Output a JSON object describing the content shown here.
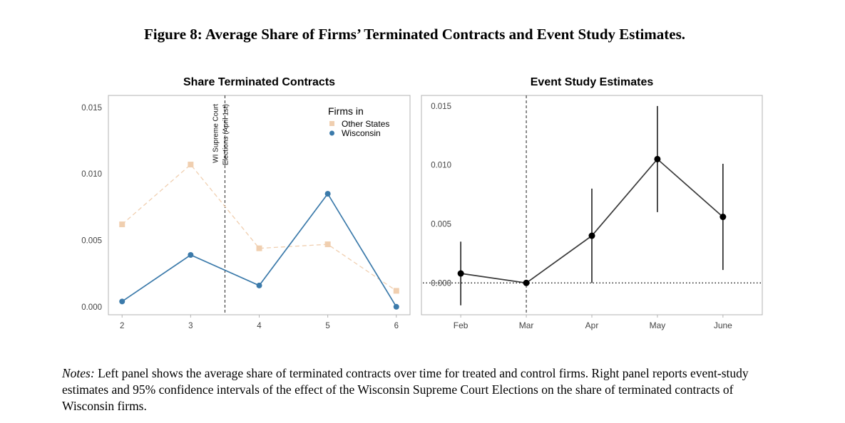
{
  "figure": {
    "title": "Figure 8: Average Share of Firms’ Terminated Contracts and Event Study Estimates."
  },
  "notes": {
    "label": "Notes:",
    "text": "Left panel shows the average share of terminated contracts over time for treated and control firms. Right panel reports event-study estimates and 95% confidence intervals of the effect of the Wisconsin Supreme Court Elections on the share of terminated contracts of Wisconsin firms."
  },
  "chart_data": [
    {
      "type": "line",
      "title": "Share Terminated Contracts",
      "xlabel": "",
      "ylabel": "",
      "x": [
        2,
        3,
        4,
        5,
        6
      ],
      "x_tick_labels": [
        "2",
        "3",
        "4",
        "5",
        "6"
      ],
      "y_ticks": [
        "0.000",
        "0.005",
        "0.010",
        "0.015"
      ],
      "ylim": [
        -0.0006,
        0.0159
      ],
      "xlim": [
        1.8,
        6.2
      ],
      "grid": false,
      "legend": {
        "title": "Firms in",
        "placement": "top-right"
      },
      "series": [
        {
          "name": "Other States",
          "values": [
            0.0062,
            0.0107,
            0.0044,
            0.0047,
            0.0012
          ],
          "color": "#f0cfb0",
          "style": "dashed",
          "marker": "square"
        },
        {
          "name": "Wisconsin",
          "values": [
            0.0004,
            0.0039,
            0.0016,
            0.0085,
            0.0
          ],
          "color": "#3b7aaa",
          "style": "solid",
          "marker": "circle"
        }
      ],
      "vline": {
        "x": 3.5,
        "style": "dashed",
        "label_lines": [
          "WI Supreme Court",
          "Elections (April 1st)"
        ]
      }
    },
    {
      "type": "scatter",
      "title": "Event Study Estimates",
      "xlabel": "",
      "ylabel": "",
      "categories": [
        "Feb",
        "Mar",
        "Apr",
        "May",
        "June"
      ],
      "y_ticks": [
        "0.000",
        "0.005",
        "0.010",
        "0.015"
      ],
      "ylim": [
        -0.0027,
        0.0159
      ],
      "grid": false,
      "series": [
        {
          "name": "",
          "values": [
            0.0008,
            0.0,
            0.004,
            0.0105,
            0.0056
          ],
          "ci_low": [
            -0.0019,
            0.0,
            0.0,
            0.006,
            0.0011
          ],
          "ci_high": [
            0.0035,
            0.0,
            0.008,
            0.015,
            0.0101
          ],
          "color": "#000000"
        }
      ],
      "vline": {
        "category": "Mar",
        "style": "dashed"
      },
      "hline": {
        "y": 0,
        "style": "dotted"
      }
    }
  ]
}
